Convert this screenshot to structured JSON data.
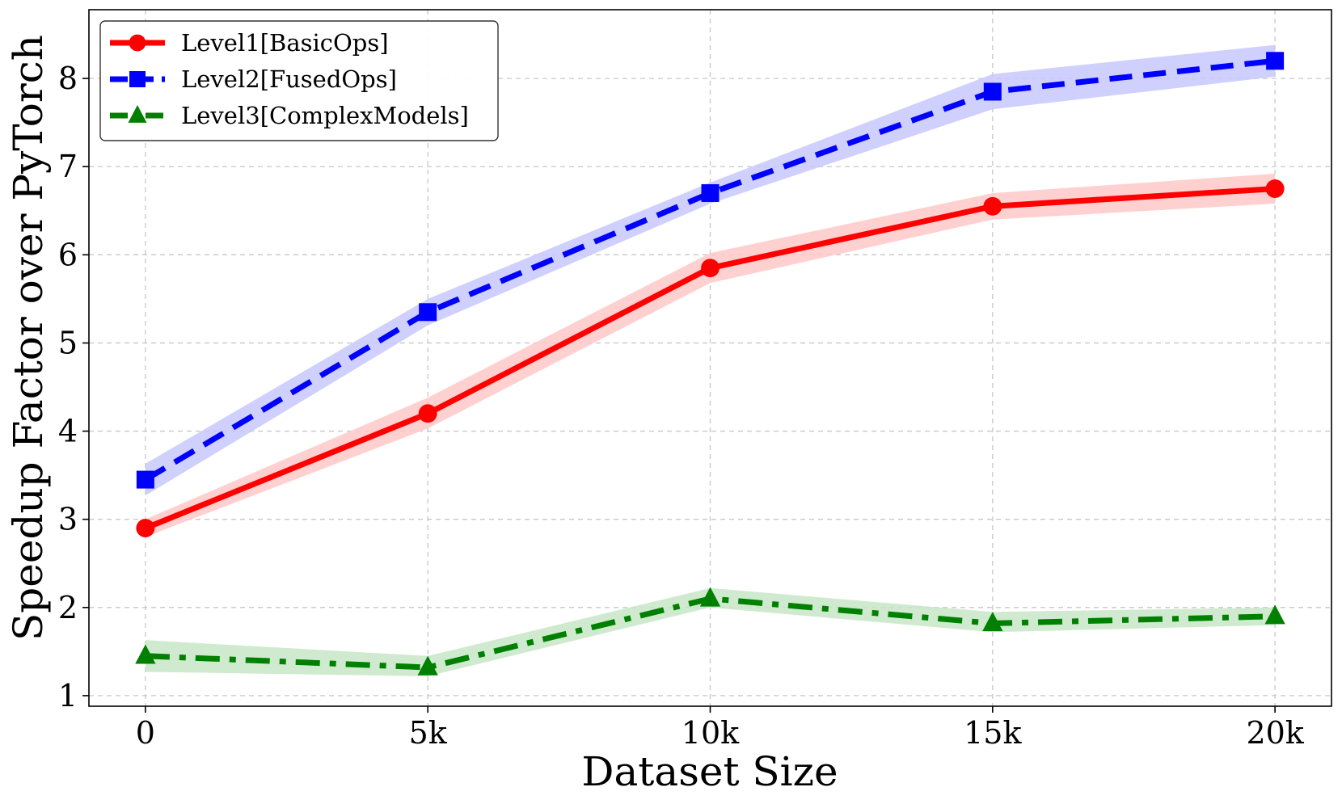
{
  "chart_data": {
    "type": "line",
    "title": "",
    "xlabel": "Dataset Size",
    "ylabel": "Speedup Factor over PyTorch",
    "x": [
      0,
      5000,
      10000,
      15000,
      20000
    ],
    "x_tick_values": [
      0,
      5000,
      10000,
      15000,
      20000
    ],
    "x_tick_labels": [
      "0",
      "5k",
      "10k",
      "15k",
      "20k"
    ],
    "y_tick_values": [
      1,
      2,
      3,
      4,
      5,
      6,
      7,
      8
    ],
    "y_tick_labels": [
      "1",
      "2",
      "3",
      "4",
      "5",
      "6",
      "7",
      "8"
    ],
    "xlim": [
      -1000,
      21000
    ],
    "ylim": [
      0.88,
      8.78
    ],
    "grid": true,
    "legend_position": "top-left",
    "series": [
      {
        "name": "Level1[BasicOps]",
        "values": [
          2.9,
          4.2,
          5.85,
          6.55,
          6.75
        ],
        "band_lower": [
          2.8,
          4.03,
          5.68,
          6.4,
          6.58
        ],
        "band_upper": [
          3.0,
          4.38,
          6.02,
          6.7,
          6.92
        ],
        "color": "#ff0000",
        "band_color": "#ffc8c8",
        "line_style": "solid",
        "marker": "circle"
      },
      {
        "name": "Level2[FusedOps]",
        "values": [
          3.45,
          5.35,
          6.7,
          7.85,
          8.2
        ],
        "band_lower": [
          3.27,
          5.2,
          6.58,
          7.65,
          8.02
        ],
        "band_upper": [
          3.63,
          5.5,
          6.82,
          8.05,
          8.38
        ],
        "color": "#0000ff",
        "band_color": "#c8c8ff",
        "line_style": "dashed",
        "marker": "square"
      },
      {
        "name": "Level3[ComplexModels]",
        "values": [
          1.45,
          1.32,
          2.1,
          1.82,
          1.9
        ],
        "band_lower": [
          1.27,
          1.22,
          2.0,
          1.72,
          1.8
        ],
        "band_upper": [
          1.63,
          1.45,
          2.22,
          1.95,
          2.0
        ],
        "color": "#008000",
        "band_color": "#c8e6c8",
        "line_style": "dashdot",
        "marker": "triangle"
      }
    ]
  }
}
